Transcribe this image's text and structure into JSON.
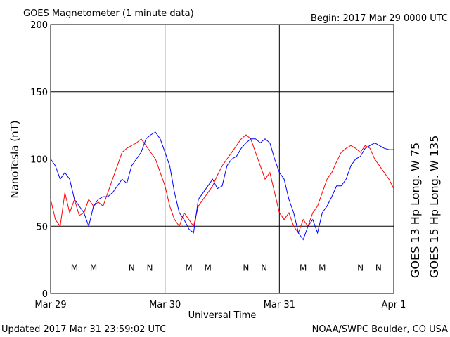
{
  "chart_data": {
    "type": "line",
    "title": "GOES Magnetometer (1 minute data)",
    "subtitle": "Begin:  2017 Mar 29 0000 UTC",
    "ylabel": "NanoTesla (nT)",
    "xlabel": "Universal Time",
    "footer_left": "Updated 2017 Mar 31 23:59:02 UTC",
    "footer_right": "NOAA/SWPC Boulder, CO USA",
    "grid": true,
    "xlim": [
      0,
      72
    ],
    "xticks": [
      {
        "value": 0,
        "label": "Mar 29"
      },
      {
        "value": 24,
        "label": "Mar 30"
      },
      {
        "value": 48,
        "label": "Mar 31"
      },
      {
        "value": 72,
        "label": "Apr 1"
      }
    ],
    "ylim": [
      0,
      200
    ],
    "yticks": [
      0,
      50,
      100,
      150,
      200
    ],
    "x": [
      0,
      1,
      2,
      3,
      4,
      5,
      6,
      7,
      8,
      9,
      10,
      11,
      12,
      13,
      14,
      15,
      16,
      17,
      18,
      19,
      20,
      21,
      22,
      23,
      24,
      25,
      26,
      27,
      28,
      29,
      30,
      31,
      32,
      33,
      34,
      35,
      36,
      37,
      38,
      39,
      40,
      41,
      42,
      43,
      44,
      45,
      46,
      47,
      48,
      49,
      50,
      51,
      52,
      53,
      54,
      55,
      56,
      57,
      58,
      59,
      60,
      61,
      62,
      63,
      64,
      65,
      66,
      67,
      68,
      69,
      70,
      71,
      72
    ],
    "series": [
      {
        "name": "GOES 13 Hp  Long. W 75",
        "color": "#ff0000",
        "values": [
          70,
          55,
          50,
          75,
          60,
          70,
          58,
          60,
          70,
          65,
          68,
          65,
          75,
          85,
          95,
          105,
          108,
          110,
          112,
          115,
          110,
          105,
          100,
          90,
          80,
          65,
          55,
          50,
          60,
          55,
          50,
          65,
          70,
          75,
          80,
          88,
          95,
          100,
          105,
          110,
          115,
          118,
          115,
          105,
          95,
          85,
          90,
          75,
          60,
          55,
          60,
          50,
          45,
          55,
          50,
          60,
          65,
          75,
          85,
          90,
          98,
          105,
          108,
          110,
          108,
          105,
          110,
          108,
          100,
          95,
          90,
          85,
          78
        ]
      },
      {
        "name": "GOES 15 Hp  Long. W 135",
        "color": "#0000ff",
        "values": [
          100,
          95,
          85,
          90,
          85,
          70,
          65,
          60,
          50,
          65,
          70,
          72,
          72,
          75,
          80,
          85,
          82,
          95,
          100,
          105,
          115,
          118,
          120,
          115,
          105,
          95,
          75,
          60,
          55,
          48,
          45,
          70,
          75,
          80,
          85,
          78,
          80,
          95,
          100,
          102,
          108,
          112,
          115,
          115,
          112,
          115,
          112,
          100,
          90,
          85,
          70,
          60,
          45,
          40,
          50,
          55,
          45,
          60,
          65,
          72,
          80,
          80,
          85,
          95,
          100,
          102,
          108,
          110,
          112,
          110,
          108,
          107,
          107
        ]
      }
    ],
    "annotations": [
      {
        "label": "M",
        "x": 5,
        "y": 17,
        "color": "#ff0000"
      },
      {
        "label": "M",
        "x": 9,
        "y": 17,
        "color": "#0000ff"
      },
      {
        "label": "N",
        "x": 17,
        "y": 17,
        "color": "#ff0000"
      },
      {
        "label": "N",
        "x": 20.8,
        "y": 17,
        "color": "#0000ff"
      },
      {
        "label": "M",
        "x": 29,
        "y": 17,
        "color": "#ff0000"
      },
      {
        "label": "M",
        "x": 33,
        "y": 17,
        "color": "#0000ff"
      },
      {
        "label": "N",
        "x": 41,
        "y": 17,
        "color": "#ff0000"
      },
      {
        "label": "N",
        "x": 44.8,
        "y": 17,
        "color": "#0000ff"
      },
      {
        "label": "M",
        "x": 53,
        "y": 17,
        "color": "#ff0000"
      },
      {
        "label": "M",
        "x": 57,
        "y": 17,
        "color": "#0000ff"
      },
      {
        "label": "N",
        "x": 65,
        "y": 17,
        "color": "#ff0000"
      },
      {
        "label": "N",
        "x": 68.8,
        "y": 17,
        "color": "#0000ff"
      }
    ]
  }
}
